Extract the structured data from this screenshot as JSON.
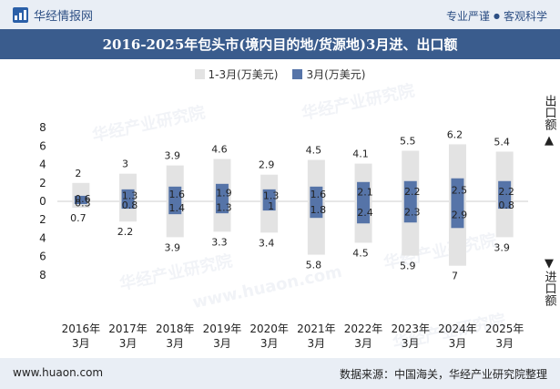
{
  "header": {
    "brand": "华经情报网",
    "tagline_left": "专业严谨",
    "tagline_right": "客观科学"
  },
  "title": "2016-2025年包头市(境内目的地/货源地)3月进、出口额",
  "legend": {
    "cumulative": "1-3月(万美元)",
    "monthly": "3月(万美元)"
  },
  "side_labels": {
    "export": "出口额",
    "import": "进口额"
  },
  "footer": {
    "website": "www.huaon.com",
    "source": "数据来源：中国海关，华经产业研究院整理"
  },
  "watermarks": [
    "华经产业研究院",
    "www.huaon.com"
  ],
  "colors": {
    "cumulative_bar": "#e3e3e3",
    "monthly_bar": "#5674a8",
    "title_bg": "#3a5c8d"
  },
  "chart_data": {
    "type": "bar",
    "categories": [
      "2016年\n3月",
      "2017年\n3月",
      "2018年\n3月",
      "2019年\n3月",
      "2020年\n3月",
      "2021年\n3月",
      "2022年\n3月",
      "2023年\n3月",
      "2024年\n3月",
      "2025年\n3月"
    ],
    "y_ticks": [
      "8",
      "6",
      "4",
      "2",
      "0",
      "2",
      "4",
      "6",
      "8"
    ],
    "ylim": [
      -8,
      8
    ],
    "series": [
      {
        "name": "1-3月(万美元)",
        "role": "export_cumulative",
        "values": [
          2,
          3,
          3.9,
          4.6,
          2.9,
          4.5,
          4.1,
          5.5,
          6.2,
          5.4
        ]
      },
      {
        "name": "1-3月(万美元)",
        "role": "import_cumulative",
        "values": [
          0.7,
          2.2,
          3.9,
          3.3,
          3.4,
          5.8,
          4.5,
          5.9,
          7,
          3.9
        ]
      },
      {
        "name": "3月(万美元)",
        "role": "export_monthly",
        "values": [
          0.6,
          1.3,
          1.6,
          1.9,
          1.3,
          1.6,
          2.1,
          2.2,
          2.5,
          2.2
        ]
      },
      {
        "name": "3月(万美元)",
        "role": "import_monthly",
        "values": [
          0.3,
          0.8,
          1.4,
          1.3,
          1,
          1.8,
          2.4,
          2.3,
          2.9,
          0.8
        ]
      }
    ],
    "legend_position": "top"
  }
}
